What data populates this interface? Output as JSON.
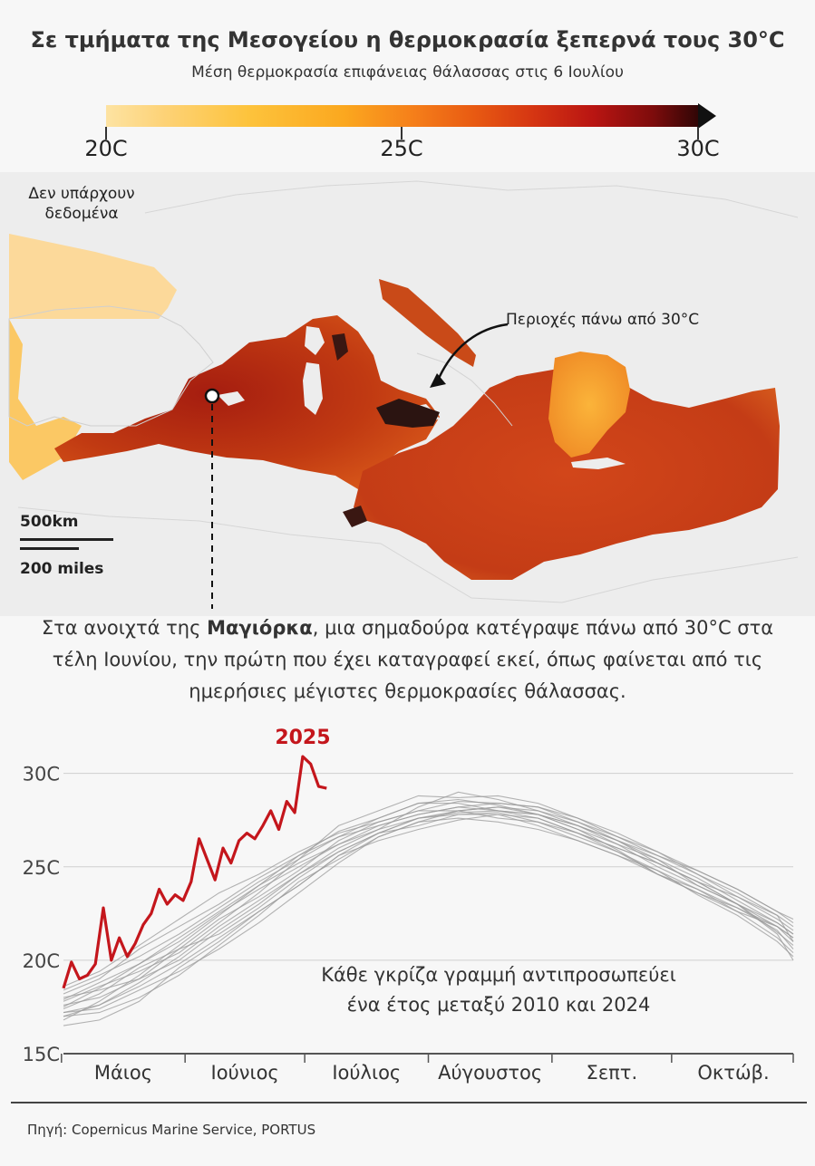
{
  "title": "Σε τμήματα της Μεσογείου η θερμοκρασία ξεπερνά τους 30°C",
  "subtitle": "Μέση θερμοκρασία επιφάνειας θάλασσας στις 6 Ιουλίου",
  "color_scale": {
    "labels": [
      "20C",
      "25C",
      "30C"
    ],
    "colors": [
      "#fde3a2",
      "#fdc33c",
      "#f57e1a",
      "#d53512",
      "#b91512",
      "#2e0606"
    ]
  },
  "map": {
    "no_data_label": "Δεν υπάρχουν δεδομένα",
    "callout_label": "Περιοχές πάνω από 30°C",
    "scale_km": "500km",
    "scale_miles": "200 miles"
  },
  "caption": {
    "before": "Στα ανοιχτά της ",
    "highlight": "Μαγιόρκα",
    "after": ", μια σημαδούρα κατέγραψε πάνω από 30°C στα τέλη Ιουνίου, την πρώτη που έχει καταγραφεί εκεί, όπως φαίνεται από τις ημερήσιες μέγιστες θερμοκρασίες θάλασσας."
  },
  "chart_annotation": {
    "line1": "Κάθε γκρίζα γραμμή αντιπροσωπεύει",
    "line2": "ένα έτος μεταξύ 2010 και 2024"
  },
  "source": "Πηγή: Copernicus Marine Service, PORTUS",
  "chart_data": {
    "type": "line",
    "title": "",
    "xlabel": "",
    "ylabel": "",
    "x_unit": "day (1 May – 31 Oct)",
    "xlim": [
      1,
      184
    ],
    "ylim": [
      15,
      31
    ],
    "y_ticks": [
      15,
      20,
      25,
      30
    ],
    "y_tick_labels": [
      "15C",
      "20C",
      "25C",
      "30C"
    ],
    "grid": "horizontal",
    "legend": "none",
    "months": [
      {
        "label": "Μάιος",
        "start": 1,
        "end": 31
      },
      {
        "label": "Ιούνιος",
        "start": 32,
        "end": 61
      },
      {
        "label": "Ιούλιος",
        "start": 62,
        "end": 92
      },
      {
        "label": "Αύγουστος",
        "start": 93,
        "end": 123
      },
      {
        "label": "Σεπτ.",
        "start": 124,
        "end": 153
      },
      {
        "label": "Οκτώβ.",
        "start": 154,
        "end": 184
      }
    ],
    "highlight_series": {
      "name": "2025",
      "color": "#c4161c",
      "x": [
        1,
        3,
        5,
        7,
        9,
        11,
        13,
        15,
        17,
        19,
        21,
        23,
        25,
        27,
        29,
        31,
        33,
        35,
        37,
        39,
        41,
        43,
        45,
        47,
        49,
        51,
        53,
        55,
        57,
        59,
        61,
        63,
        65,
        67
      ],
      "values": [
        18.5,
        19.9,
        19.0,
        19.2,
        19.8,
        22.8,
        20.0,
        21.2,
        20.2,
        20.9,
        21.9,
        22.5,
        23.8,
        23.0,
        23.5,
        23.2,
        24.2,
        26.5,
        25.4,
        24.3,
        26.0,
        25.2,
        26.4,
        26.8,
        26.5,
        27.2,
        28.0,
        27.0,
        28.5,
        27.9,
        30.9,
        30.5,
        29.3,
        29.2
      ]
    },
    "background_series_color": "#9a9a9a",
    "background_series": [
      {
        "x": [
          1,
          10,
          20,
          30,
          40,
          50,
          60,
          70,
          80,
          90,
          100,
          110,
          120,
          130,
          140,
          150,
          160,
          170,
          180,
          184
        ],
        "values": [
          17.5,
          18.5,
          19.8,
          21.0,
          22.5,
          23.8,
          25.0,
          26.2,
          27.0,
          27.6,
          28.0,
          28.2,
          28.0,
          27.2,
          26.2,
          25.0,
          24.0,
          23.0,
          21.5,
          20.8
        ]
      },
      {
        "x": [
          1,
          10,
          20,
          30,
          40,
          50,
          60,
          70,
          80,
          90,
          100,
          110,
          120,
          130,
          140,
          150,
          160,
          170,
          180,
          184
        ],
        "values": [
          17.0,
          17.6,
          18.8,
          20.2,
          21.8,
          23.2,
          24.6,
          25.8,
          26.8,
          27.2,
          27.8,
          27.9,
          27.4,
          26.6,
          25.8,
          24.8,
          23.5,
          22.4,
          21.0,
          20.2
        ]
      },
      {
        "x": [
          1,
          10,
          20,
          30,
          40,
          50,
          60,
          70,
          80,
          90,
          100,
          110,
          120,
          130,
          140,
          150,
          160,
          170,
          180,
          184
        ],
        "values": [
          18.2,
          19.0,
          20.6,
          21.8,
          23.0,
          24.4,
          25.6,
          26.9,
          27.6,
          28.4,
          28.6,
          28.3,
          27.8,
          27.0,
          25.9,
          24.6,
          23.8,
          22.6,
          21.8,
          21.2
        ]
      },
      {
        "x": [
          1,
          10,
          20,
          30,
          40,
          50,
          60,
          70,
          80,
          90,
          100,
          110,
          120,
          130,
          140,
          150,
          160,
          170,
          180,
          184
        ],
        "values": [
          16.5,
          16.8,
          17.8,
          19.6,
          21.0,
          22.6,
          24.0,
          25.6,
          26.4,
          27.0,
          27.5,
          27.8,
          27.6,
          26.8,
          26.0,
          25.2,
          24.2,
          23.0,
          21.4,
          20.0
        ]
      },
      {
        "x": [
          1,
          10,
          20,
          30,
          40,
          50,
          60,
          70,
          80,
          90,
          100,
          110,
          120,
          130,
          140,
          150,
          160,
          170,
          180,
          184
        ],
        "values": [
          17.8,
          18.6,
          19.4,
          20.4,
          22.0,
          23.6,
          25.4,
          27.2,
          28.0,
          28.8,
          28.7,
          28.8,
          28.4,
          27.6,
          26.6,
          25.6,
          24.6,
          23.4,
          22.2,
          21.6
        ]
      },
      {
        "x": [
          1,
          10,
          20,
          30,
          40,
          50,
          60,
          70,
          80,
          90,
          100,
          110,
          120,
          130,
          140,
          150,
          160,
          170,
          180,
          184
        ],
        "values": [
          17.2,
          17.4,
          18.4,
          19.4,
          20.6,
          22.0,
          23.6,
          25.2,
          26.6,
          27.4,
          28.0,
          28.2,
          27.8,
          27.0,
          26.2,
          25.4,
          24.4,
          23.2,
          22.0,
          21.4
        ]
      },
      {
        "x": [
          1,
          10,
          20,
          30,
          40,
          50,
          60,
          70,
          80,
          90,
          100,
          110,
          120,
          130,
          140,
          150,
          160,
          170,
          180,
          184
        ],
        "values": [
          18.6,
          19.4,
          20.8,
          22.2,
          23.6,
          24.6,
          25.8,
          26.8,
          27.4,
          28.0,
          28.5,
          28.4,
          28.2,
          27.6,
          26.8,
          25.8,
          24.8,
          23.8,
          22.6,
          22.0
        ]
      },
      {
        "x": [
          1,
          10,
          20,
          30,
          40,
          50,
          60,
          70,
          80,
          90,
          100,
          110,
          120,
          130,
          140,
          150,
          160,
          170,
          180,
          184
        ],
        "values": [
          17.6,
          18.0,
          19.0,
          20.6,
          22.2,
          23.4,
          24.8,
          26.4,
          27.4,
          28.0,
          28.0,
          27.6,
          27.4,
          26.8,
          25.8,
          24.6,
          23.6,
          22.6,
          21.2,
          20.4
        ]
      },
      {
        "x": [
          1,
          10,
          20,
          30,
          40,
          50,
          60,
          70,
          80,
          90,
          100,
          110,
          120,
          130,
          140,
          150,
          160,
          170,
          180,
          184
        ],
        "values": [
          16.8,
          17.8,
          19.2,
          20.8,
          22.4,
          24.0,
          25.6,
          26.6,
          27.2,
          27.8,
          28.2,
          28.0,
          27.6,
          26.8,
          26.0,
          25.2,
          24.2,
          23.4,
          22.4,
          21.0
        ]
      },
      {
        "x": [
          1,
          10,
          20,
          30,
          40,
          50,
          60,
          70,
          80,
          90,
          100,
          110,
          120,
          130,
          140,
          150,
          160,
          170,
          180,
          184
        ],
        "values": [
          17.4,
          18.2,
          19.6,
          20.6,
          21.4,
          22.8,
          24.4,
          25.8,
          26.8,
          27.6,
          27.9,
          28.0,
          27.8,
          27.2,
          26.4,
          25.4,
          24.0,
          23.0,
          21.8,
          21.2
        ]
      },
      {
        "x": [
          1,
          10,
          20,
          30,
          40,
          50,
          60,
          70,
          80,
          90,
          100,
          110,
          120,
          130,
          140,
          150,
          160,
          170,
          180,
          184
        ],
        "values": [
          18.0,
          18.4,
          19.0,
          20.0,
          21.6,
          23.0,
          24.6,
          26.0,
          27.0,
          28.2,
          29.0,
          28.6,
          28.0,
          27.4,
          26.6,
          25.8,
          24.6,
          23.6,
          22.4,
          21.8
        ]
      },
      {
        "x": [
          1,
          10,
          20,
          30,
          40,
          50,
          60,
          70,
          80,
          90,
          100,
          110,
          120,
          130,
          140,
          150,
          160,
          170,
          180,
          184
        ],
        "values": [
          17.0,
          17.2,
          18.0,
          19.2,
          20.8,
          22.4,
          24.2,
          25.4,
          26.6,
          27.4,
          27.6,
          27.4,
          27.0,
          26.4,
          25.6,
          24.8,
          23.8,
          22.8,
          21.6,
          20.6
        ]
      },
      {
        "x": [
          1,
          10,
          20,
          30,
          40,
          50,
          60,
          70,
          80,
          90,
          100,
          110,
          120,
          130,
          140,
          150,
          160,
          170,
          180,
          184
        ],
        "values": [
          18.4,
          19.2,
          20.2,
          21.4,
          22.8,
          24.2,
          25.4,
          26.6,
          27.6,
          28.4,
          28.4,
          28.0,
          27.8,
          27.2,
          26.4,
          25.6,
          24.8,
          23.8,
          22.6,
          22.2
        ]
      },
      {
        "x": [
          1,
          10,
          20,
          30,
          40,
          50,
          60,
          70,
          80,
          90,
          100,
          110,
          120,
          130,
          140,
          150,
          160,
          170,
          180,
          184
        ],
        "values": [
          17.2,
          17.6,
          18.6,
          19.8,
          21.2,
          22.6,
          24.0,
          25.6,
          26.8,
          27.6,
          27.8,
          27.8,
          27.2,
          26.4,
          25.6,
          24.6,
          23.6,
          22.8,
          21.8,
          21.0
        ]
      },
      {
        "x": [
          1,
          10,
          20,
          30,
          40,
          50,
          60,
          70,
          80,
          90,
          100,
          110,
          120,
          130,
          140,
          150,
          160,
          170,
          180,
          184
        ],
        "values": [
          17.9,
          18.8,
          19.8,
          21.2,
          22.6,
          24.0,
          25.2,
          26.2,
          27.2,
          27.8,
          28.2,
          28.4,
          28.2,
          27.4,
          26.4,
          25.2,
          24.2,
          23.0,
          22.0,
          21.4
        ]
      }
    ]
  }
}
